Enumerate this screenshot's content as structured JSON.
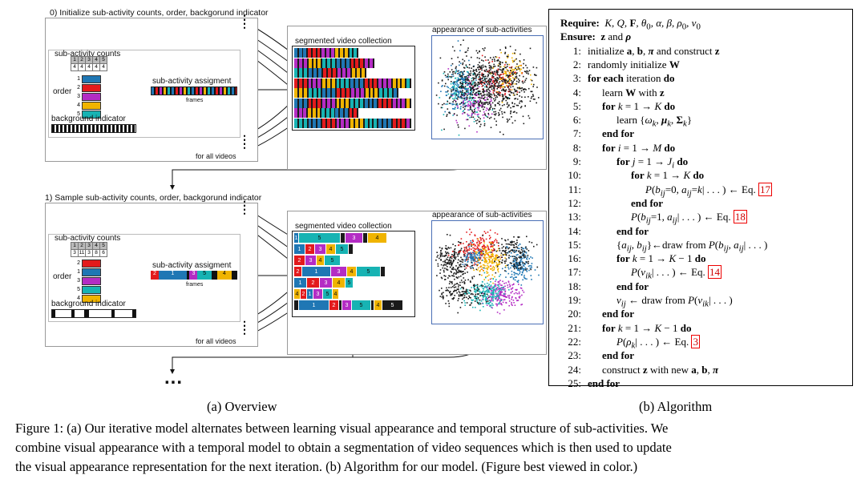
{
  "overview": {
    "step0_title": "0) Initialize sub-activity counts, order, backgorund indicator",
    "step1_title": "1) Sample sub-activity counts, order, backgorund indicator",
    "subactivity_counts_label": "sub-activity counts",
    "order_label": "order",
    "background_indicator_label": "background indicator",
    "subactivity_assignment_label": "sub-activity assigment",
    "frames_label": "frames",
    "segmented_label": "segmented video collection",
    "appearance_label": "appearance of sub-activities",
    "for_all_videos_label": "for all videos",
    "continuation": "...",
    "counts0": {
      "header": [
        "1",
        "2",
        "3",
        "4",
        "5"
      ],
      "values": [
        "4",
        "4",
        "4",
        "4",
        "4"
      ]
    },
    "counts1": {
      "header": [
        "1",
        "2",
        "3",
        "4",
        "5"
      ],
      "values": [
        "3",
        "11",
        "3",
        "8",
        "6"
      ]
    },
    "order0": [
      "1",
      "2",
      "3",
      "4",
      "5"
    ],
    "order1": [
      "2",
      "1",
      "3",
      "5",
      "4"
    ]
  },
  "colors": {
    "c1": "#1f77b4",
    "c2": "#e31a1c",
    "c3": "#b42cc4",
    "c4": "#f0b400",
    "c5": "#17b3b3",
    "bg": "#1a1a1a"
  },
  "algorithm": {
    "lines": [
      {
        "num": "",
        "html": "<b>Require:</b>&nbsp; <i>K, Q,</i> <b>F</b><i>, θ</i><sub>0</sub><i>, α, β, ρ</i><sub>0</sub><i>, ν</i><sub>0</sub>",
        "indent": 0
      },
      {
        "num": "",
        "html": "<b>Ensure:</b>&nbsp; <b>z</b> and <b><i>ρ</i></b>",
        "indent": 0
      },
      {
        "num": "1:",
        "html": "initialize <b>a</b>, <b>b</b>, <b><i>π</i></b> and construct <b>z</b>",
        "indent": 0
      },
      {
        "num": "2:",
        "html": "randomly initialize <b>W</b>",
        "indent": 0
      },
      {
        "num": "3:",
        "html": "<b>for each</b> iteration <b>do</b>",
        "indent": 0
      },
      {
        "num": "4:",
        "html": "learn <b>W</b> with <b>z</b>",
        "indent": 1
      },
      {
        "num": "5:",
        "html": "<b>for</b> <i>k</i> = 1 → <i>K</i> <b>do</b>",
        "indent": 1
      },
      {
        "num": "6:",
        "html": "learn {<i>ω<sub>k</sub></i>, <b><i>μ</i></b><sub><i>k</i></sub>, <b>Σ</b><sub><i>k</i></sub>}",
        "indent": 2
      },
      {
        "num": "7:",
        "html": "<b>end for</b>",
        "indent": 1
      },
      {
        "num": "8:",
        "html": "<b>for</b> <i>i</i> = 1 → <i>M</i> <b>do</b>",
        "indent": 1
      },
      {
        "num": "9:",
        "html": "<b>for</b> <i>j</i> = 1 → <i>J<sub>i</sub></i> <b>do</b>",
        "indent": 2
      },
      {
        "num": "10:",
        "html": "<b>for</b> <i>k</i> = 1 → <i>K</i> <b>do</b>",
        "indent": 3
      },
      {
        "num": "11:",
        "html": "<i>P</i>(<i>b<sub>ij</sub></i>=0, <i>a<sub>ij</sub></i>=<i>k</i>| . . . ) ← Eq. <span class=\"ref\">17</span>",
        "indent": 4
      },
      {
        "num": "12:",
        "html": "<b>end for</b>",
        "indent": 3
      },
      {
        "num": "13:",
        "html": "<i>P</i>(<i>b<sub>ij</sub></i>=1, <i>a<sub>ij</sub></i>| . . . ) ← Eq. <span class=\"ref\">18</span>",
        "indent": 3
      },
      {
        "num": "14:",
        "html": "<b>end for</b>",
        "indent": 2
      },
      {
        "num": "15:",
        "html": "{<i>a<sub>ij</sub></i>, <i>b<sub>ij</sub></i>}←draw from <i>P</i>(<i>b<sub>ij</sub></i>, <i>a<sub>ij</sub></i>| . . . )",
        "indent": 2
      },
      {
        "num": "16:",
        "html": "<b>for</b> <i>k</i> = 1 → <i>K</i> − 1 <b>do</b>",
        "indent": 2
      },
      {
        "num": "17:",
        "html": "<i>P</i>(<i>v<sub>ik</sub></i>| . . . ) ← Eq. <span class=\"ref\">14</span>",
        "indent": 3
      },
      {
        "num": "18:",
        "html": "<b>end for</b>",
        "indent": 2
      },
      {
        "num": "19:",
        "html": "<i>v<sub>ij</sub></i> ← draw from <i>P</i>(<i>v<sub>ik</sub></i>| . . . )",
        "indent": 2
      },
      {
        "num": "20:",
        "html": "<b>end for</b>",
        "indent": 1
      },
      {
        "num": "21:",
        "html": "<b>for</b> <i>k</i> = 1 → <i>K</i> − 1 <b>do</b>",
        "indent": 1
      },
      {
        "num": "22:",
        "html": "<i>P</i>(<i>ρ<sub>k</sub></i>| . . . ) ← Eq. <span class=\"ref\">3</span>",
        "indent": 2
      },
      {
        "num": "23:",
        "html": "<b>end for</b>",
        "indent": 1
      },
      {
        "num": "24:",
        "html": "construct <b>z</b> with new <b>a</b>, <b>b</b>, <b><i>π</i></b>",
        "indent": 1
      },
      {
        "num": "25:",
        "html": "<b>end for</b>",
        "indent": 0
      }
    ]
  },
  "sublabels": {
    "a": "(a) Overview",
    "b": "(b) Algorithm"
  },
  "caption": {
    "line1": "Figure 1: (a) Our iterative model alternates between learning visual appearance and temporal structure of sub-activities. We",
    "line2": "combine visual appearance with a temporal model to obtain a segmentation of video sequences which is then used to update",
    "line3": "the visual appearance representation for the next iteration. (b) Algorithm for our model. (Figure best viewed in color.)"
  }
}
